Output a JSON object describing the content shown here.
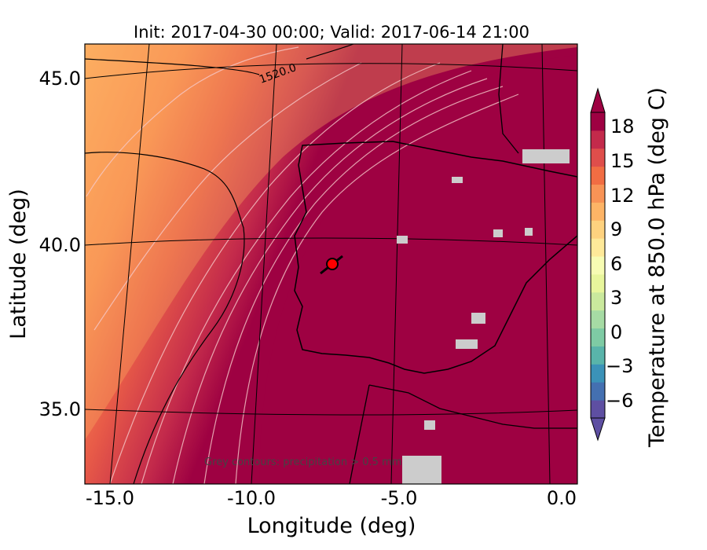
{
  "title": "Init: 2017-04-30 00:00; Valid: 2017-06-14 21:00",
  "axes": {
    "xlabel": "Longitude (deg)",
    "ylabel": "Latitude (deg)",
    "xticks": [
      "-15.0",
      "-10.0",
      "-5.0",
      "0.0"
    ],
    "yticks": [
      "45.0",
      "40.0",
      "35.0"
    ]
  },
  "contour_label": "1520.0",
  "annotation": "Grey contours: precipitation > 0.5 mm",
  "colorbar": {
    "label": "Temperature at 850.0 hPa (deg C)",
    "ticks": [
      "18",
      "15",
      "12",
      "9",
      "6",
      "3",
      "0",
      "−3",
      "−6"
    ],
    "extend": "both",
    "colormap": "Spectral_r",
    "colors": [
      "#5e4fa2",
      "#4470b1",
      "#3b92b8",
      "#59b4aa",
      "#7ecba4",
      "#a6dba4",
      "#cae99d",
      "#e8f69c",
      "#f7fcb3",
      "#fee999",
      "#fed27f",
      "#fdb466",
      "#f89356",
      "#f16d43",
      "#df4e4b",
      "#c32a4b",
      "#9e0142"
    ]
  },
  "marker_color": "#ff0000",
  "map_colors": {
    "hot": "#9e0142",
    "warm": "#c32a4b",
    "mid": "#d9444c",
    "orange": "#f16d43",
    "light_orange": "#fdae61",
    "precip": "#cccccc"
  }
}
